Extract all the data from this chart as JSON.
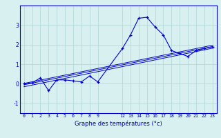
{
  "xlabel": "Graphe des températures (°c)",
  "background_color": "#d8f0f0",
  "line_color": "#0000cc",
  "grid_color": "#b0d4d4",
  "x_ticks": [
    0,
    1,
    2,
    3,
    4,
    5,
    6,
    7,
    8,
    9,
    12,
    13,
    14,
    15,
    16,
    17,
    18,
    19,
    20,
    21,
    22,
    23
  ],
  "x_tick_labels": [
    "0",
    "1",
    "2",
    "3",
    "4",
    "5",
    "6",
    "7",
    "8",
    "9",
    "12",
    "13",
    "14",
    "15",
    "16",
    "17",
    "18",
    "19",
    "20",
    "21",
    "22",
    "23"
  ],
  "ylim": [
    -1.5,
    4.0
  ],
  "xlim": [
    -0.5,
    23.5
  ],
  "yticks": [
    -1,
    0,
    1,
    2,
    3
  ],
  "curve1_x": [
    0,
    1,
    2,
    3,
    4,
    5,
    6,
    7,
    8,
    9,
    12,
    13,
    14,
    15,
    16,
    17,
    18,
    19,
    20,
    21,
    22,
    23
  ],
  "curve1_y": [
    0.0,
    0.05,
    0.3,
    -0.35,
    0.2,
    0.2,
    0.15,
    0.1,
    0.4,
    0.1,
    1.8,
    2.5,
    3.35,
    3.4,
    2.9,
    2.5,
    1.7,
    1.55,
    1.4,
    1.7,
    1.8,
    1.9
  ],
  "line1_x": [
    0,
    23
  ],
  "line1_y": [
    -0.05,
    1.9
  ],
  "line2_x": [
    0,
    23
  ],
  "line2_y": [
    -0.15,
    1.82
  ],
  "line3_x": [
    0,
    23
  ],
  "line3_y": [
    0.02,
    1.97
  ]
}
